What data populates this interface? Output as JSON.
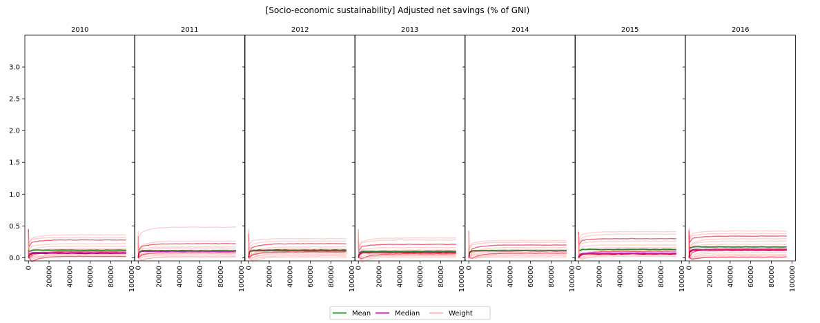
{
  "chart_data": {
    "type": "line",
    "title": "[Socio-economic sustainability] Adjusted net savings (% of GNI)",
    "panels": [
      "2010",
      "2011",
      "2012",
      "2013",
      "2014",
      "2015",
      "2016"
    ],
    "x_ticks": [
      0,
      20000,
      40000,
      60000,
      80000,
      100000
    ],
    "x_tick_labels": [
      "0",
      "20000",
      "40000",
      "60000",
      "80000",
      "100000"
    ],
    "xlim": [
      -3500,
      103500
    ],
    "y_ticks": [
      0.0,
      0.5,
      1.0,
      1.5,
      2.0,
      2.5,
      3.0
    ],
    "y_tick_labels": [
      "0.0",
      "0.5",
      "1.0",
      "1.5",
      "2.0",
      "2.5",
      "3.0"
    ],
    "ylim": [
      -0.05,
      3.5
    ],
    "grid": false,
    "legend": {
      "placement": "bottom-center",
      "entries": [
        {
          "label": "Mean",
          "color": "#2ca02c"
        },
        {
          "label": "Median",
          "color": "#c020c0"
        },
        {
          "label": "Weight",
          "color": "#ffb3b3"
        }
      ]
    },
    "colors": {
      "mean": "#2a8a2a",
      "median": "#c020c0",
      "weight": "#ff9999",
      "weight_strong": "#e00020"
    },
    "series": {
      "weight_levels": [
        [
          0.36,
          0.32,
          0.28,
          0.22,
          0.18,
          0.14,
          0.12,
          0.1,
          0.08,
          0.06,
          0.05,
          0.03,
          0.02
        ],
        [
          0.48,
          0.26,
          0.22,
          0.17,
          0.15,
          0.12,
          0.1,
          0.08,
          0.06,
          0.04,
          0.02,
          0.01
        ],
        [
          0.3,
          0.26,
          0.22,
          0.17,
          0.14,
          0.12,
          0.1,
          0.09,
          0.07,
          0.05,
          0.03,
          0.01
        ],
        [
          0.31,
          0.28,
          0.21,
          0.16,
          0.12,
          0.1,
          0.08,
          0.06,
          0.04,
          0.03,
          0.01
        ],
        [
          0.27,
          0.24,
          0.2,
          0.16,
          0.13,
          0.11,
          0.09,
          0.07,
          0.05,
          0.03,
          0.01
        ],
        [
          0.41,
          0.37,
          0.3,
          0.26,
          0.2,
          0.16,
          0.12,
          0.1,
          0.08,
          0.06,
          0.04,
          0.02
        ],
        [
          0.42,
          0.38,
          0.34,
          0.3,
          0.26,
          0.21,
          0.17,
          0.14,
          0.11,
          0.08,
          0.05,
          0.03,
          0.01
        ]
      ],
      "mean": [
        0.12,
        0.11,
        0.11,
        0.1,
        0.11,
        0.13,
        0.17
      ],
      "median": [
        0.08,
        0.1,
        0.11,
        0.09,
        0.11,
        0.07,
        0.13
      ],
      "strong": [
        0.07,
        0.11,
        0.12,
        0.08,
        0.11,
        0.06,
        0.12
      ]
    }
  }
}
